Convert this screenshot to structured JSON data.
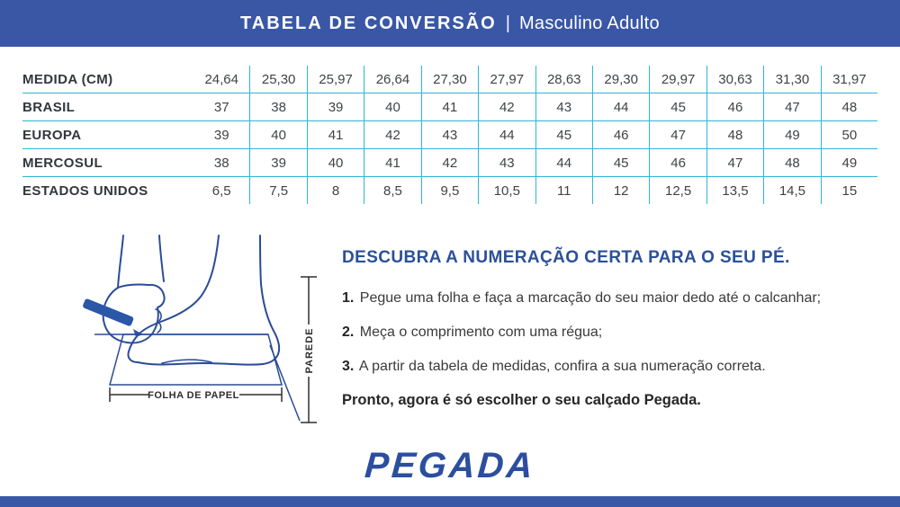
{
  "header": {
    "title_bold": "TABELA DE CONVERSÃO",
    "separator": "|",
    "title_regular": "Masculino Adulto",
    "bg_color": "#3a57a6",
    "text_color": "#ffffff"
  },
  "table": {
    "grid_color": "#2eb6d4",
    "rows": [
      {
        "label": "MEDIDA (CM)",
        "values": [
          "24,64",
          "25,30",
          "25,97",
          "26,64",
          "27,30",
          "27,97",
          "28,63",
          "29,30",
          "29,97",
          "30,63",
          "31,30",
          "31,97"
        ]
      },
      {
        "label": "BRASIL",
        "values": [
          "37",
          "38",
          "39",
          "40",
          "41",
          "42",
          "43",
          "44",
          "45",
          "46",
          "47",
          "48"
        ]
      },
      {
        "label": "EUROPA",
        "values": [
          "39",
          "40",
          "41",
          "42",
          "43",
          "44",
          "45",
          "46",
          "47",
          "48",
          "49",
          "50"
        ]
      },
      {
        "label": "MERCOSUL",
        "values": [
          "38",
          "39",
          "40",
          "41",
          "42",
          "43",
          "44",
          "45",
          "46",
          "47",
          "48",
          "49"
        ]
      },
      {
        "label": "ESTADOS UNIDOS",
        "values": [
          "6,5",
          "7,5",
          "8",
          "8,5",
          "9,5",
          "10,5",
          "11",
          "12",
          "12,5",
          "13,5",
          "14,5",
          "15"
        ]
      }
    ]
  },
  "diagram": {
    "wall_label": "PAREDE",
    "paper_label": "FOLHA DE PAPEL",
    "art_color": "#2a4c97",
    "pen_color": "#2b57a8",
    "dimension_color": "#2f2f2f"
  },
  "instructions": {
    "heading": "DESCUBRA A NUMERAÇÃO CERTA PARA O SEU PÉ.",
    "steps": [
      {
        "num": "1.",
        "text": "Pegue uma folha e faça a marcação do seu maior dedo até o calcanhar;"
      },
      {
        "num": "2.",
        "text": "Meça o comprimento com uma régua;"
      },
      {
        "num": "3.",
        "text": "A partir da tabela de medidas, confira a sua numeração correta."
      }
    ],
    "closing": "Pronto, agora é só escolher o seu calçado Pegada."
  },
  "footer": {
    "logo_text": "PEGADA",
    "logo_color": "#2b4e9f"
  }
}
